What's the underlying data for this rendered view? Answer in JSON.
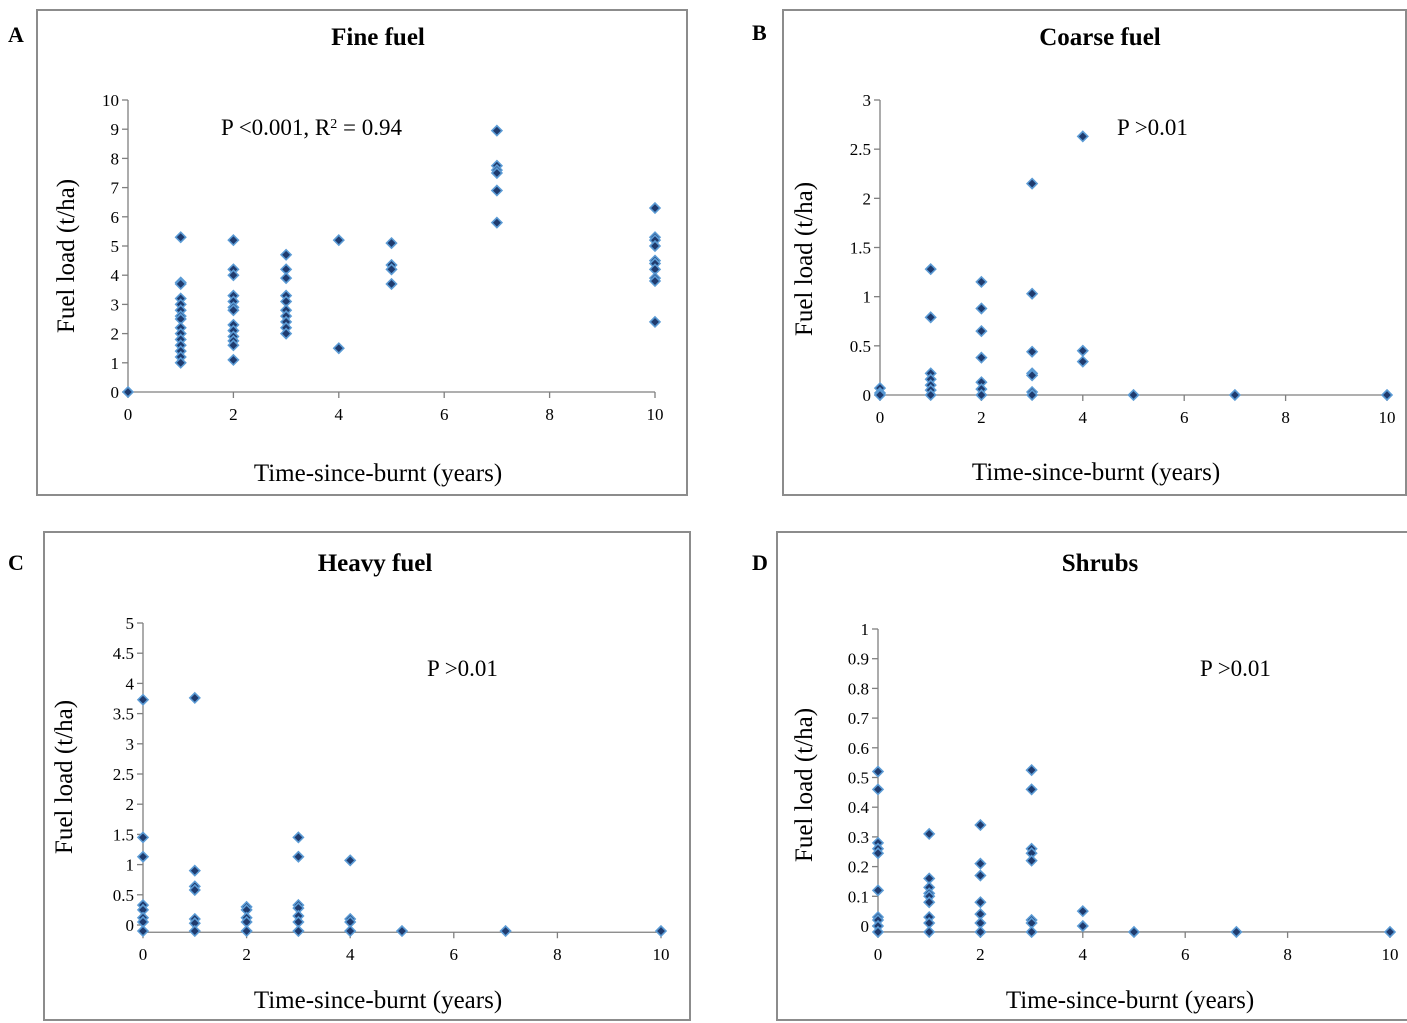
{
  "chart_data": [
    {
      "panel": "A",
      "type": "scatter",
      "title": "Fine fuel",
      "xlabel": "Time-since-burnt (years)",
      "ylabel": "Fuel load (t/ha)",
      "annotation_p": "P <0.001, R",
      "annotation_sup": "2",
      "annotation_tail": " = 0.94",
      "xlim": [
        0,
        10
      ],
      "ylim": [
        0,
        10
      ],
      "x_ticks": [
        "0",
        "2",
        "4",
        "6",
        "8",
        "10"
      ],
      "y_ticks": [
        "0",
        "1",
        "2",
        "3",
        "4",
        "5",
        "6",
        "7",
        "8",
        "9",
        "10"
      ],
      "marker_color": "#1f3b6e",
      "marker_edge": "#5b9bd5",
      "points": [
        [
          0,
          0
        ],
        [
          1,
          5.3
        ],
        [
          1,
          3.75
        ],
        [
          1,
          3.7
        ],
        [
          1,
          3.2
        ],
        [
          1,
          3.0
        ],
        [
          1,
          2.8
        ],
        [
          1,
          2.6
        ],
        [
          1,
          2.5
        ],
        [
          1,
          2.2
        ],
        [
          1,
          2.0
        ],
        [
          1,
          1.8
        ],
        [
          1,
          1.6
        ],
        [
          1,
          1.4
        ],
        [
          1,
          1.2
        ],
        [
          1,
          1.0
        ],
        [
          2,
          5.2
        ],
        [
          2,
          4.2
        ],
        [
          2,
          4.0
        ],
        [
          2,
          3.3
        ],
        [
          2,
          3.1
        ],
        [
          2,
          2.9
        ],
        [
          2,
          2.8
        ],
        [
          2,
          2.3
        ],
        [
          2,
          2.1
        ],
        [
          2,
          1.9
        ],
        [
          2,
          1.75
        ],
        [
          2,
          1.6
        ],
        [
          2,
          1.1
        ],
        [
          3,
          4.7
        ],
        [
          3,
          4.2
        ],
        [
          3,
          3.9
        ],
        [
          3,
          3.3
        ],
        [
          3,
          3.1
        ],
        [
          3,
          2.8
        ],
        [
          3,
          2.6
        ],
        [
          3,
          2.4
        ],
        [
          3,
          2.2
        ],
        [
          3,
          2.0
        ],
        [
          4,
          5.2
        ],
        [
          4,
          1.5
        ],
        [
          5,
          5.1
        ],
        [
          5,
          4.35
        ],
        [
          5,
          4.2
        ],
        [
          5,
          3.7
        ],
        [
          7,
          8.95
        ],
        [
          7,
          7.75
        ],
        [
          7,
          7.6
        ],
        [
          7,
          7.5
        ],
        [
          7,
          6.9
        ],
        [
          7,
          5.8
        ],
        [
          10,
          6.3
        ],
        [
          10,
          5.3
        ],
        [
          10,
          5.2
        ],
        [
          10,
          5.0
        ],
        [
          10,
          4.5
        ],
        [
          10,
          4.4
        ],
        [
          10,
          4.2
        ],
        [
          10,
          3.9
        ],
        [
          10,
          3.8
        ],
        [
          10,
          2.4
        ]
      ]
    },
    {
      "panel": "B",
      "type": "scatter",
      "title": "Coarse fuel",
      "xlabel": "Time-since-burnt (years)",
      "ylabel": "Fuel load (t/ha)",
      "annotation_p": "P >0.01",
      "xlim": [
        0,
        10
      ],
      "ylim": [
        0,
        3
      ],
      "x_ticks": [
        "0",
        "2",
        "4",
        "6",
        "8",
        "10"
      ],
      "y_ticks": [
        "0",
        "0.5",
        "1",
        "1.5",
        "2",
        "2.5",
        "3"
      ],
      "marker_color": "#1f3b6e",
      "marker_edge": "#5b9bd5",
      "points": [
        [
          0,
          0.07
        ],
        [
          0,
          0.02
        ],
        [
          0,
          0.0
        ],
        [
          1,
          1.28
        ],
        [
          1,
          0.79
        ],
        [
          1,
          0.22
        ],
        [
          1,
          0.16
        ],
        [
          1,
          0.1
        ],
        [
          1,
          0.05
        ],
        [
          1,
          0.0
        ],
        [
          2,
          1.15
        ],
        [
          2,
          0.88
        ],
        [
          2,
          0.65
        ],
        [
          2,
          0.38
        ],
        [
          2,
          0.13
        ],
        [
          2,
          0.06
        ],
        [
          2,
          0.0
        ],
        [
          3,
          2.15
        ],
        [
          3,
          1.03
        ],
        [
          3,
          0.44
        ],
        [
          3,
          0.22
        ],
        [
          3,
          0.2
        ],
        [
          3,
          0.03
        ],
        [
          3,
          0.0
        ],
        [
          4,
          2.63
        ],
        [
          4,
          0.45
        ],
        [
          4,
          0.34
        ],
        [
          5,
          0.0
        ],
        [
          7,
          0.0
        ],
        [
          10,
          0.0
        ]
      ]
    },
    {
      "panel": "C",
      "type": "scatter",
      "title": "Heavy fuel",
      "xlabel": "Time-since-burnt (years)",
      "ylabel": "Fuel load (t/ha)",
      "annotation_p": "P >0.01",
      "xlim": [
        0,
        10
      ],
      "ylim": [
        0,
        5
      ],
      "y_origin": -0.12,
      "x_ticks": [
        "0",
        "2",
        "4",
        "6",
        "8",
        "10"
      ],
      "y_ticks": [
        "0",
        "0.5",
        "1",
        "1.5",
        "2",
        "2.5",
        "3",
        "3.5",
        "4",
        "4.5",
        "5"
      ],
      "marker_color": "#1f3b6e",
      "marker_edge": "#5b9bd5",
      "points": [
        [
          0,
          3.73
        ],
        [
          0,
          1.45
        ],
        [
          0,
          1.13
        ],
        [
          0,
          0.33
        ],
        [
          0,
          0.25
        ],
        [
          0,
          0.12
        ],
        [
          0,
          0.05
        ],
        [
          0,
          -0.1
        ],
        [
          1,
          3.76
        ],
        [
          1,
          0.9
        ],
        [
          1,
          0.64
        ],
        [
          1,
          0.58
        ],
        [
          1,
          0.1
        ],
        [
          1,
          0.03
        ],
        [
          1,
          -0.1
        ],
        [
          2,
          0.3
        ],
        [
          2,
          0.25
        ],
        [
          2,
          0.12
        ],
        [
          2,
          0.05
        ],
        [
          2,
          -0.1
        ],
        [
          3,
          1.45
        ],
        [
          3,
          1.13
        ],
        [
          3,
          0.33
        ],
        [
          3,
          0.28
        ],
        [
          3,
          0.15
        ],
        [
          3,
          0.05
        ],
        [
          3,
          -0.1
        ],
        [
          4,
          1.07
        ],
        [
          4,
          0.1
        ],
        [
          4,
          0.05
        ],
        [
          4,
          -0.1
        ],
        [
          5,
          -0.1
        ],
        [
          7,
          -0.1
        ],
        [
          10,
          -0.1
        ]
      ]
    },
    {
      "panel": "D",
      "type": "scatter",
      "title": "Shrubs",
      "xlabel": "Time-since-burnt (years)",
      "ylabel": "Fuel load (t/ha)",
      "annotation_p": "P >0.01",
      "xlim": [
        0,
        10
      ],
      "ylim": [
        0,
        1
      ],
      "y_origin": -0.02,
      "x_ticks": [
        "0",
        "2",
        "4",
        "6",
        "8",
        "10"
      ],
      "y_ticks": [
        "0",
        "0.1",
        "0.2",
        "0.3",
        "0.4",
        "0.5",
        "0.6",
        "0.7",
        "0.8",
        "0.9",
        "1"
      ],
      "marker_color": "#1f3b6e",
      "marker_edge": "#5b9bd5",
      "points": [
        [
          0,
          0.52
        ],
        [
          0,
          0.46
        ],
        [
          0,
          0.28
        ],
        [
          0,
          0.26
        ],
        [
          0,
          0.245
        ],
        [
          0,
          0.12
        ],
        [
          0,
          0.03
        ],
        [
          0,
          0.02
        ],
        [
          0,
          0.0
        ],
        [
          0,
          -0.02
        ],
        [
          1,
          0.31
        ],
        [
          1,
          0.16
        ],
        [
          1,
          0.13
        ],
        [
          1,
          0.11
        ],
        [
          1,
          0.1
        ],
        [
          1,
          0.08
        ],
        [
          1,
          0.03
        ],
        [
          1,
          0.01
        ],
        [
          1,
          -0.02
        ],
        [
          2,
          0.34
        ],
        [
          2,
          0.21
        ],
        [
          2,
          0.17
        ],
        [
          2,
          0.08
        ],
        [
          2,
          0.04
        ],
        [
          2,
          0.01
        ],
        [
          2,
          -0.02
        ],
        [
          3,
          0.525
        ],
        [
          3,
          0.46
        ],
        [
          3,
          0.26
        ],
        [
          3,
          0.245
        ],
        [
          3,
          0.22
        ],
        [
          3,
          0.02
        ],
        [
          3,
          0.01
        ],
        [
          3,
          -0.02
        ],
        [
          4,
          0.05
        ],
        [
          4,
          0.0
        ],
        [
          5,
          -0.02
        ],
        [
          7,
          -0.02
        ],
        [
          10,
          -0.02
        ]
      ]
    }
  ]
}
